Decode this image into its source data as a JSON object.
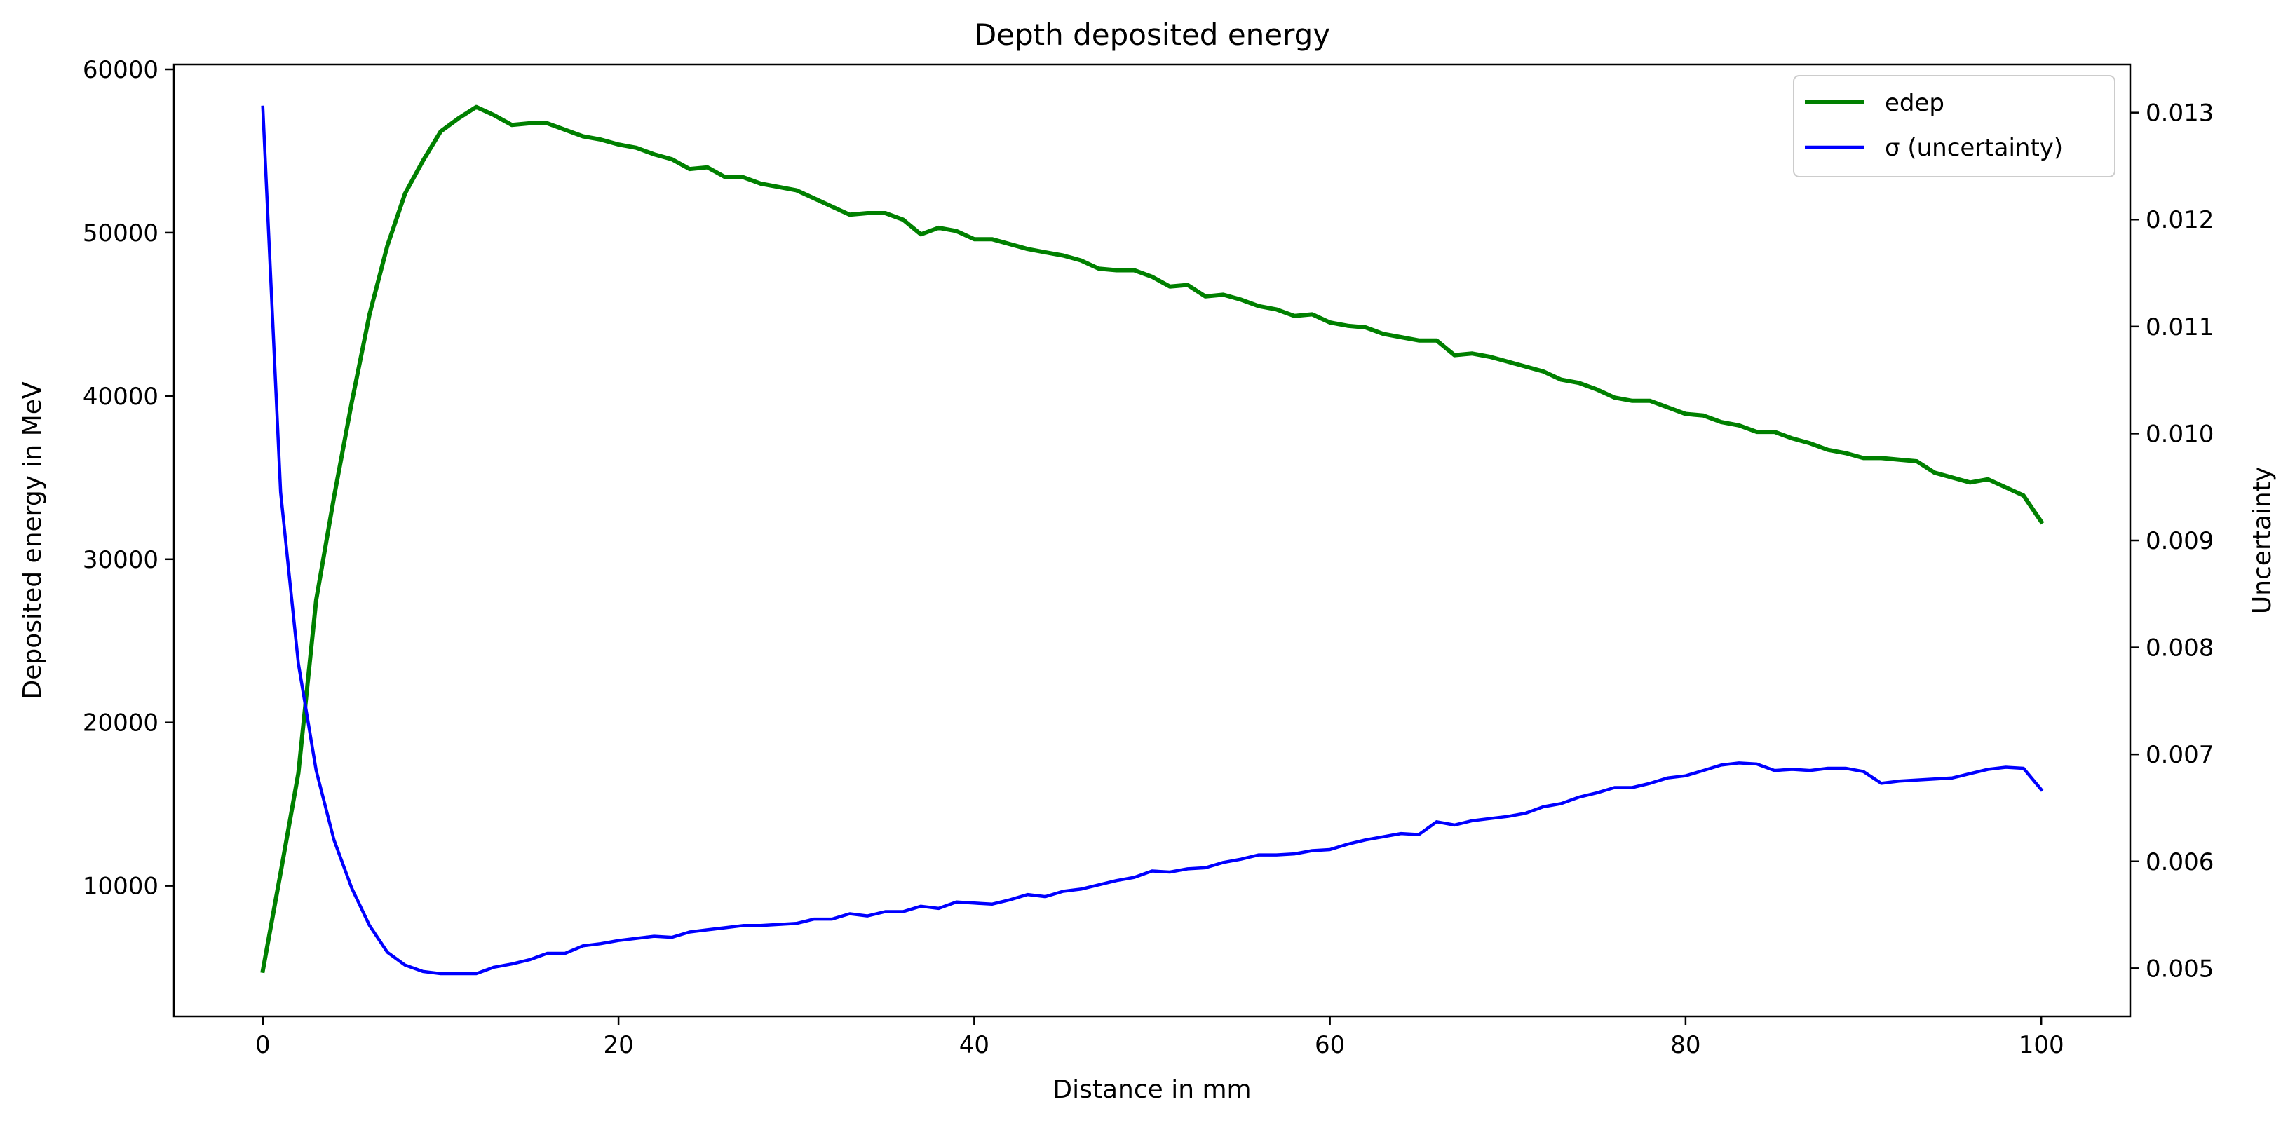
{
  "chart_data": {
    "type": "line",
    "title": "Depth deposited energy",
    "xlabel": "Distance in mm",
    "ylabel": "Deposited energy in MeV",
    "y2label": "Uncertainty",
    "xlim": [
      -5,
      105
    ],
    "ylim": [
      2000,
      60300
    ],
    "y2lim": [
      0.00455,
      0.01345
    ],
    "xticks": [
      0,
      20,
      40,
      60,
      80,
      100
    ],
    "yticks": [
      10000,
      20000,
      30000,
      40000,
      50000,
      60000
    ],
    "y2ticks": [
      0.005,
      0.006,
      0.007,
      0.008,
      0.009,
      0.01,
      0.011,
      0.012,
      0.013
    ],
    "xtick_labels": [
      "0",
      "20",
      "40",
      "60",
      "80",
      "100"
    ],
    "ytick_labels": [
      "10000",
      "20000",
      "30000",
      "40000",
      "50000",
      "60000"
    ],
    "y2tick_labels": [
      "0.005",
      "0.006",
      "0.007",
      "0.008",
      "0.009",
      "0.010",
      "0.011",
      "0.012",
      "0.013"
    ],
    "legend_position": "top-right",
    "grid": false,
    "x": [
      0,
      1,
      2,
      3,
      4,
      5,
      6,
      7,
      8,
      9,
      10,
      11,
      12,
      13,
      14,
      15,
      16,
      17,
      18,
      19,
      20,
      21,
      22,
      23,
      24,
      25,
      26,
      27,
      28,
      29,
      30,
      31,
      32,
      33,
      34,
      35,
      36,
      37,
      38,
      39,
      40,
      41,
      42,
      43,
      44,
      45,
      46,
      47,
      48,
      49,
      50,
      51,
      52,
      53,
      54,
      55,
      56,
      57,
      58,
      59,
      60,
      61,
      62,
      63,
      64,
      65,
      66,
      67,
      68,
      69,
      70,
      71,
      72,
      73,
      74,
      75,
      76,
      77,
      78,
      79,
      80,
      81,
      82,
      83,
      84,
      85,
      86,
      87,
      88,
      89,
      90,
      91,
      92,
      93,
      94,
      95,
      96,
      97,
      98,
      99,
      100
    ],
    "series": [
      {
        "name": "edep",
        "axis": "left",
        "color": "#008000",
        "values": [
          4800,
          10800,
          16900,
          27500,
          33800,
          39600,
          45000,
          49200,
          52400,
          54400,
          56200,
          57000,
          57700,
          57200,
          56600,
          56700,
          56700,
          56300,
          55900,
          55700,
          55400,
          55200,
          54800,
          54500,
          53900,
          54000,
          53400,
          53400,
          53000,
          52800,
          52600,
          52100,
          51600,
          51100,
          51200,
          51200,
          50800,
          49900,
          50300,
          50100,
          49600,
          49600,
          49300,
          49000,
          48800,
          48600,
          48300,
          47800,
          47700,
          47700,
          47300,
          46700,
          46800,
          46100,
          46200,
          45900,
          45500,
          45300,
          44900,
          45000,
          44500,
          44300,
          44200,
          43800,
          43600,
          43400,
          43400,
          42500,
          42600,
          42400,
          42100,
          41800,
          41500,
          41000,
          40800,
          40400,
          39900,
          39700,
          39700,
          39300,
          38900,
          38800,
          38400,
          38200,
          37800,
          37800,
          37400,
          37100,
          36700,
          36500,
          36200,
          36200,
          36100,
          36000,
          35300,
          35000,
          34700,
          34900,
          34400,
          33900,
          32300
        ]
      },
      {
        "name": "σ (uncertainty)",
        "axis": "right",
        "color": "#0000ff",
        "values": [
          0.01305,
          0.00945,
          0.00785,
          0.00685,
          0.0062,
          0.00575,
          0.0054,
          0.00515,
          0.00503,
          0.00497,
          0.00495,
          0.00495,
          0.00495,
          0.00501,
          0.00504,
          0.00508,
          0.00514,
          0.00514,
          0.00521,
          0.00523,
          0.00526,
          0.00528,
          0.0053,
          0.00529,
          0.00534,
          0.00536,
          0.00538,
          0.0054,
          0.0054,
          0.00541,
          0.00542,
          0.00546,
          0.00546,
          0.00551,
          0.00549,
          0.00553,
          0.00553,
          0.00558,
          0.00556,
          0.00562,
          0.00561,
          0.0056,
          0.00564,
          0.00569,
          0.00567,
          0.00572,
          0.00574,
          0.00578,
          0.00582,
          0.00585,
          0.00591,
          0.0059,
          0.00593,
          0.00594,
          0.00599,
          0.00602,
          0.00606,
          0.00606,
          0.00607,
          0.0061,
          0.00611,
          0.00616,
          0.0062,
          0.00623,
          0.00626,
          0.00625,
          0.00637,
          0.00634,
          0.00638,
          0.0064,
          0.00642,
          0.00645,
          0.00651,
          0.00654,
          0.0066,
          0.00664,
          0.00669,
          0.00669,
          0.00673,
          0.00678,
          0.0068,
          0.00685,
          0.0069,
          0.00692,
          0.00691,
          0.00685,
          0.00686,
          0.00685,
          0.00687,
          0.00687,
          0.00684,
          0.00673,
          0.00675,
          0.00676,
          0.00677,
          0.00678,
          0.00682,
          0.00686,
          0.00688,
          0.00687,
          0.00667
        ]
      }
    ]
  }
}
